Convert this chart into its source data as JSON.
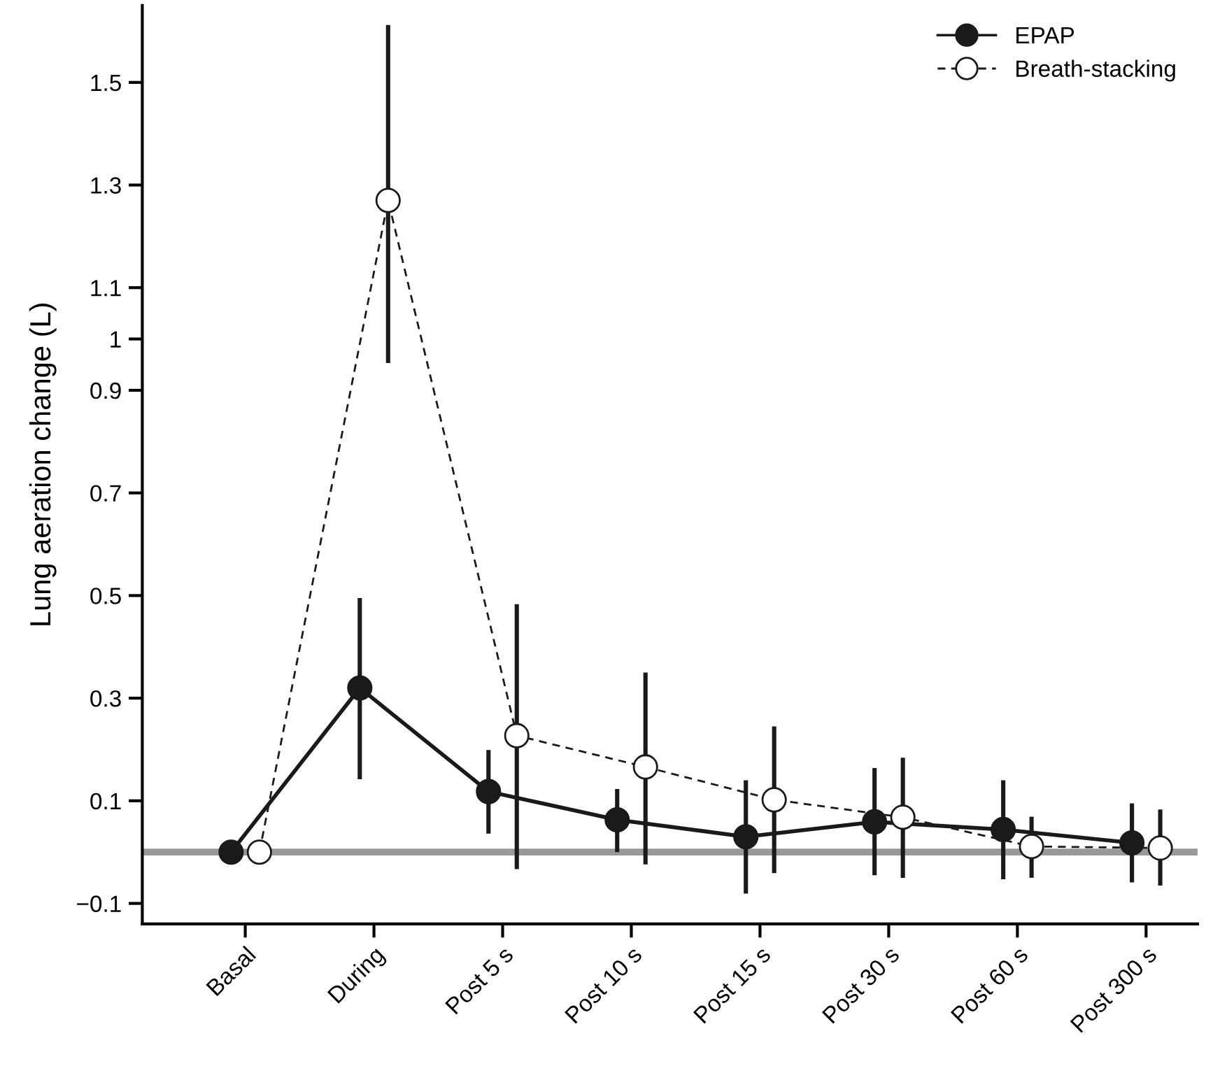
{
  "chart_data": {
    "type": "line",
    "ylabel": "Lung aeration change (L)",
    "categories": [
      "Basal",
      "During",
      "Post 5 s",
      "Post 10 s",
      "Post 15 s",
      "Post 30 s",
      "Post 60 s",
      "Post 300 s"
    ],
    "ylim": [
      -0.14,
      1.65
    ],
    "yticks": [
      -0.1,
      0.1,
      0.3,
      0.5,
      0.7,
      0.9,
      1,
      1.1,
      1.3,
      1.5
    ],
    "legend": "top right",
    "marker": "circle",
    "grid": false,
    "ref_lines": [
      {
        "axis": "y",
        "value": 0,
        "color": "#999999"
      }
    ],
    "series": [
      {
        "name": "EPAP",
        "color": "#1a1a1a",
        "line_style": "solid",
        "values": [
          0,
          0.32,
          0.118,
          0.063,
          0.03,
          0.059,
          0.044,
          0.018
        ],
        "errors": [
          null,
          [
            0.142,
            0.495
          ],
          [
            0.036,
            0.199
          ],
          [
            0.0,
            0.123
          ],
          [
            -0.081,
            0.14
          ],
          [
            -0.045,
            0.164
          ],
          [
            -0.053,
            0.14
          ],
          [
            -0.059,
            0.095
          ]
        ]
      },
      {
        "name": "Breath-stacking",
        "color": "#1a1a1a",
        "line_style": "dashed",
        "values": [
          0,
          1.27,
          0.227,
          0.166,
          0.102,
          0.068,
          0.011,
          0.008
        ],
        "errors": [
          null,
          [
            0.953,
            1.612
          ],
          [
            -0.033,
            0.483
          ],
          [
            -0.024,
            0.35
          ],
          [
            -0.041,
            0.245
          ],
          [
            -0.05,
            0.184
          ],
          [
            -0.05,
            0.069
          ],
          [
            -0.065,
            0.083
          ]
        ]
      }
    ]
  }
}
